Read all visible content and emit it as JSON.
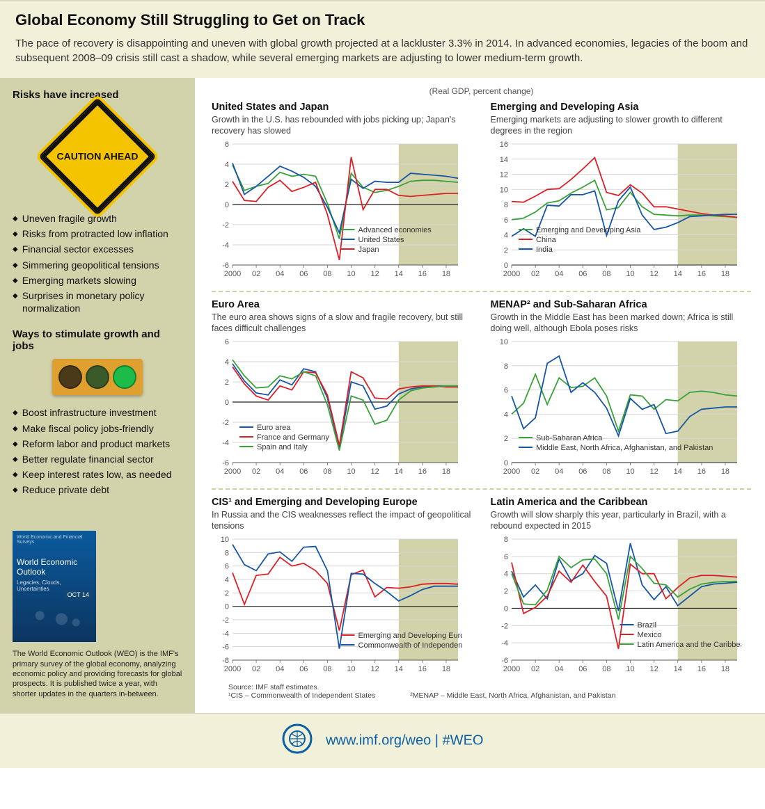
{
  "header": {
    "title": "Global Economy Still Struggling to Get on Track",
    "intro": "The pace of recovery is disappointing and uneven with global growth projected at a lackluster 3.3% in 2014.  In advanced economies, legacies of the boom and subsequent 2008–09 crisis still cast a shadow, while several emerging markets are adjusting to lower medium-term growth."
  },
  "sidebar": {
    "risks_title": "Risks have increased",
    "caution_text": "CAUTION AHEAD",
    "risks": [
      "Uneven fragile growth",
      "Risks from protracted low inflation",
      "Financial sector excesses",
      "Simmering geopolitical tensions",
      "Emerging markets slowing",
      "Surprises in monetary policy normalization"
    ],
    "ways_title": "Ways to stimulate growth and jobs",
    "traffic_colors": [
      "#4a3a1a",
      "#3a5a2a",
      "#1dbb4a"
    ],
    "ways": [
      "Boost infrastructure investment",
      "Make fiscal policy jobs-friendly",
      "Reform labor and product markets",
      "Better regulate financial sector",
      "Keep interest rates low, as needed",
      "Reduce private debt"
    ],
    "weo_cover_title": "World Economic Outlook",
    "weo_cover_sub": "Legacies, Clouds, Uncertainties",
    "weo_blurb": "The World Economic Outlook (WEO) is the IMF's primary survey of the global economy, analyzing economic policy and providing forecasts for global prospects. It is published twice a year, with shorter updates in the quarters in-between."
  },
  "charts": {
    "axis_note": "(Real GDP, percent change)",
    "x_years": [
      2000,
      2001,
      2002,
      2003,
      2004,
      2005,
      2006,
      2007,
      2008,
      2009,
      2010,
      2011,
      2012,
      2013,
      2014,
      2015,
      2016,
      2017,
      2018,
      2019
    ],
    "x_ticks": [
      "2000",
      "02",
      "04",
      "06",
      "08",
      "10",
      "12",
      "14",
      "16",
      "18"
    ],
    "forecast_start_year": 2014,
    "colors": {
      "grid": "#d6d6d6",
      "axis": "#888888",
      "forecast_band": "#d3d3ab",
      "green": "#3aa23a",
      "blue": "#1656a6",
      "red": "#da2128"
    },
    "panels": [
      {
        "id": "us_japan",
        "title": "United States and Japan",
        "desc": "Growth in the U.S. has rebounded with jobs picking up; Japan's recovery has slowed",
        "ylim": [
          -6,
          6
        ],
        "ytick_step": 2,
        "legend_pos": "inside-right-low",
        "series": [
          {
            "label": "Advanced economies",
            "color": "green",
            "values": [
              3.9,
              1.4,
              1.8,
              2.1,
              3.2,
              2.8,
              3.0,
              2.8,
              0.1,
              -3.4,
              3.1,
              1.7,
              1.2,
              1.4,
              1.8,
              2.3,
              2.4,
              2.4,
              2.3,
              2.2
            ]
          },
          {
            "label": "United States",
            "color": "blue",
            "values": [
              4.1,
              1.0,
              1.8,
              2.8,
              3.8,
              3.3,
              2.7,
              1.8,
              -0.3,
              -2.8,
              2.5,
              1.6,
              2.3,
              2.2,
              2.2,
              3.1,
              3.0,
              2.9,
              2.8,
              2.6
            ]
          },
          {
            "label": "Japan",
            "color": "red",
            "values": [
              2.3,
              0.4,
              0.3,
              1.7,
              2.4,
              1.3,
              1.7,
              2.2,
              -1.0,
              -5.5,
              4.7,
              -0.5,
              1.5,
              1.5,
              0.9,
              0.8,
              0.9,
              1.0,
              1.1,
              1.1
            ]
          }
        ]
      },
      {
        "id": "asia",
        "title": "Emerging and Developing Asia",
        "desc": "Emerging markets are adjusting to slower growth to different degrees in the region",
        "ylim": [
          0,
          16
        ],
        "ytick_step": 2,
        "legend_pos": "inside-left-low",
        "series": [
          {
            "label": "Emerging and Developing Asia",
            "color": "green",
            "values": [
              6.0,
              6.2,
              7.0,
              8.2,
              8.5,
              9.5,
              10.3,
              11.2,
              7.3,
              7.6,
              9.6,
              7.7,
              6.7,
              6.6,
              6.5,
              6.6,
              6.6,
              6.5,
              6.4,
              6.3
            ]
          },
          {
            "label": "China",
            "color": "red",
            "values": [
              8.4,
              8.3,
              9.1,
              10.0,
              10.1,
              11.3,
              12.7,
              14.2,
              9.6,
              9.2,
              10.6,
              9.5,
              7.7,
              7.7,
              7.4,
              7.1,
              6.8,
              6.6,
              6.5,
              6.3
            ]
          },
          {
            "label": "India",
            "color": "blue",
            "values": [
              3.8,
              4.8,
              3.8,
              7.9,
              7.8,
              9.3,
              9.3,
              9.8,
              3.9,
              8.5,
              10.3,
              6.6,
              4.7,
              5.0,
              5.6,
              6.4,
              6.5,
              6.6,
              6.7,
              6.7
            ]
          }
        ]
      },
      {
        "id": "euro",
        "title": "Euro Area",
        "desc": "The euro area shows signs of a slow and fragile recovery, but still faces difficult challenges",
        "ylim": [
          -6,
          6
        ],
        "ytick_step": 2,
        "legend_pos": "inside-left-low",
        "series": [
          {
            "label": "Euro area",
            "color": "blue",
            "values": [
              3.8,
              2.1,
              0.9,
              0.7,
              2.2,
              1.7,
              3.3,
              3.0,
              0.4,
              -4.5,
              2.0,
              1.6,
              -0.7,
              -0.4,
              0.8,
              1.3,
              1.5,
              1.6,
              1.6,
              1.6
            ]
          },
          {
            "label": "France and Germany",
            "color": "red",
            "values": [
              3.5,
              1.8,
              0.6,
              0.2,
              1.6,
              1.2,
              3.0,
              2.9,
              0.7,
              -4.3,
              3.0,
              2.4,
              0.4,
              0.3,
              1.3,
              1.5,
              1.6,
              1.6,
              1.5,
              1.5
            ]
          },
          {
            "label": "Spain and Italy",
            "color": "green",
            "values": [
              4.2,
              2.6,
              1.4,
              1.5,
              2.6,
              2.3,
              3.0,
              2.6,
              -0.3,
              -4.8,
              0.6,
              0.2,
              -2.2,
              -1.8,
              0.2,
              1.1,
              1.4,
              1.5,
              1.6,
              1.6
            ]
          }
        ]
      },
      {
        "id": "menap",
        "title": "MENAP² and Sub-Saharan Africa",
        "desc": "Growth in the Middle East has been marked down; Africa is still doing well, although Ebola poses risks",
        "ylim": [
          0,
          10
        ],
        "ytick_step": 2,
        "legend_pos": "inside-left-low",
        "series": [
          {
            "label": "Sub-Saharan Africa",
            "color": "green",
            "values": [
              4.0,
              4.9,
              7.3,
              4.8,
              7.0,
              6.2,
              6.3,
              7.0,
              5.5,
              2.6,
              5.6,
              5.5,
              4.4,
              5.2,
              5.1,
              5.8,
              5.9,
              5.8,
              5.6,
              5.5
            ]
          },
          {
            "label": "Middle East, North Africa, Afghanistan, and Pakistan",
            "color": "blue",
            "values": [
              5.5,
              2.8,
              3.7,
              8.2,
              8.8,
              5.8,
              6.6,
              5.8,
              4.5,
              2.2,
              5.3,
              4.4,
              4.8,
              2.4,
              2.6,
              3.8,
              4.4,
              4.5,
              4.6,
              4.6
            ]
          }
        ]
      },
      {
        "id": "cis",
        "title": "CIS¹ and Emerging and Developing Europe",
        "desc": "In Russia and the CIS weaknesses reflect the impact of geopolitical tensions",
        "ylim": [
          -8,
          10
        ],
        "ytick_step": 2,
        "legend_pos": "inside-right-low",
        "series": [
          {
            "label": "Emerging and Developing Europe",
            "color": "red",
            "values": [
              5.0,
              0.3,
              4.6,
              4.8,
              7.3,
              6.0,
              6.4,
              5.3,
              3.4,
              -3.6,
              4.7,
              5.4,
              1.4,
              2.8,
              2.7,
              2.9,
              3.3,
              3.4,
              3.4,
              3.3
            ]
          },
          {
            "label": "Commonwealth of Independent States",
            "color": "blue",
            "values": [
              9.2,
              6.2,
              5.3,
              7.8,
              8.1,
              6.7,
              8.8,
              8.9,
              5.3,
              -6.3,
              4.9,
              4.8,
              3.4,
              2.2,
              0.8,
              1.6,
              2.5,
              3.0,
              3.0,
              3.0
            ]
          }
        ]
      },
      {
        "id": "lac",
        "title": "Latin America and the Caribbean",
        "desc": "Growth will slow sharply this year, particularly in Brazil, with a rebound expected in 2015",
        "ylim": [
          -6,
          8
        ],
        "ytick_step": 2,
        "legend_pos": "inside-right-low",
        "series": [
          {
            "label": "Brazil",
            "color": "blue",
            "values": [
              4.3,
              1.3,
              2.7,
              1.1,
              5.7,
              3.2,
              4.0,
              6.1,
              5.2,
              -0.3,
              7.5,
              2.7,
              1.0,
              2.5,
              0.3,
              1.4,
              2.5,
              2.8,
              2.9,
              3.0
            ]
          },
          {
            "label": "Mexico",
            "color": "red",
            "values": [
              5.3,
              -0.6,
              0.1,
              1.4,
              4.3,
              3.0,
              5.0,
              3.1,
              1.4,
              -4.7,
              5.1,
              4.0,
              4.0,
              1.1,
              2.4,
              3.5,
              3.8,
              3.8,
              3.7,
              3.6
            ]
          },
          {
            "label": "Latin America and the Caribbean",
            "color": "green",
            "values": [
              4.0,
              0.5,
              0.4,
              2.1,
              6.0,
              4.7,
              5.6,
              5.7,
              4.0,
              -1.3,
              6.0,
              4.6,
              2.9,
              2.7,
              1.3,
              2.2,
              2.8,
              3.0,
              3.1,
              3.1
            ]
          }
        ]
      }
    ],
    "source_line": "Source: IMF staff estimates.",
    "footnote1": "¹CIS – Commonwealth of Independent States",
    "footnote2": "²MENAP – Middle East, North Africa, Afghanistan, and Pakistan"
  },
  "footer": {
    "url": "www.imf.org/weo",
    "sep": " | ",
    "hash": "#WEO"
  }
}
